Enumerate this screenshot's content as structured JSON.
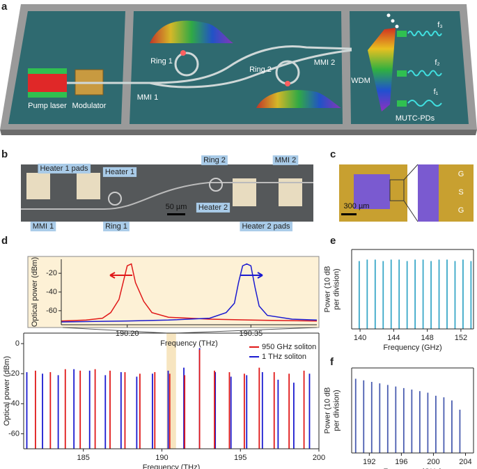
{
  "panels": {
    "a": "a",
    "b": "b",
    "c": "c",
    "d": "d",
    "e": "e",
    "f": "f"
  },
  "schematic": {
    "pump_laser": "Pump laser",
    "modulator": "Modulator",
    "mmi1": "MMI 1",
    "ring1": "Ring 1",
    "ring2": "Ring 2",
    "mmi2": "MMI 2",
    "wdm": "WDM",
    "pds": "MUTC-PDs",
    "f3": "f₃",
    "f2": "f₂",
    "f1": "f₁"
  },
  "micrograph": {
    "heater1_pads": "Heater 1 pads",
    "heater1": "Heater 1",
    "ring2": "Ring 2",
    "mmi2": "MMI 2",
    "mmi1": "MMI 1",
    "ring1": "Ring 1",
    "scale": "50 µm",
    "heater2": "Heater 2",
    "heater2_pads": "Heater 2 pads"
  },
  "chip_photo": {
    "scale": "300 µm",
    "pad_top": "G",
    "pad_mid": "S",
    "pad_bottom": "G"
  },
  "chart_data": [
    {
      "type": "stem",
      "x_label": "Frequency (THz)",
      "y_label": "Optical power (dBm)",
      "xlim": [
        181.2,
        200
      ],
      "ylim": [
        -70,
        7
      ],
      "xticks": [
        185,
        190,
        195,
        200
      ],
      "yticks": [
        -60,
        -40,
        -20,
        0
      ],
      "highlight": [
        190.3,
        190.9
      ],
      "series": [
        {
          "name": "1 THz soliton",
          "color": "#1a1ad0",
          "x": [
            181.4,
            182.4,
            183.4,
            184.4,
            185.4,
            186.4,
            187.4,
            188.4,
            189.4,
            190.4,
            191.4,
            192.4,
            193.4,
            194.4,
            195.4,
            196.4,
            197.4,
            198.4,
            199.4
          ],
          "values": [
            -19,
            -20,
            -21,
            -17,
            -18,
            -21,
            -19,
            -22,
            -20,
            -18,
            -16,
            -3,
            -19,
            -22,
            -21,
            -19,
            -24,
            -26,
            -20
          ]
        },
        {
          "name": "950 GHz soliton",
          "color": "#e01818",
          "x": [
            181.95,
            182.9,
            183.85,
            184.8,
            185.75,
            186.7,
            187.65,
            188.6,
            189.55,
            190.5,
            191.45,
            192.4,
            193.35,
            194.3,
            195.25,
            196.2,
            197.15,
            198.1,
            199.05
          ],
          "values": [
            -18,
            -19,
            -17,
            -18,
            -17,
            -18,
            -19,
            -20,
            -19,
            -20,
            -21,
            -4,
            -18,
            -19,
            -20,
            -16,
            -19,
            -20,
            -18
          ]
        }
      ]
    },
    {
      "type": "line",
      "x_label": "Frequency (THz)",
      "y_label": "Optical power (dBm)",
      "xlim": [
        190.12,
        190.43
      ],
      "ylim": [
        -75,
        -5
      ],
      "xticks": [
        {
          "value": 190.2,
          "label": "190.20"
        },
        190.35
      ],
      "yticks": [
        -60,
        -40,
        -20
      ],
      "series": [
        {
          "color": "#e01818",
          "x": [
            190.12,
            190.15,
            190.17,
            190.18,
            190.19,
            190.195,
            190.2,
            190.205,
            190.21,
            190.22,
            190.23,
            190.25,
            190.3,
            190.35,
            190.43
          ],
          "values": [
            -71,
            -70,
            -68,
            -62,
            -48,
            -30,
            -12,
            -10,
            -30,
            -50,
            -62,
            -67,
            -69,
            -70,
            -71
          ]
        },
        {
          "color": "#1a1ad0",
          "x": [
            190.12,
            190.2,
            190.25,
            190.3,
            190.32,
            190.33,
            190.335,
            190.34,
            190.345,
            190.35,
            190.355,
            190.36,
            190.37,
            190.4,
            190.43
          ],
          "values": [
            -72,
            -71,
            -70,
            -68,
            -62,
            -52,
            -30,
            -12,
            -10,
            -12,
            -35,
            -55,
            -65,
            -69,
            -70
          ]
        }
      ]
    },
    {
      "type": "stem",
      "x_label": "Frequency (GHz)",
      "y_label": [
        "Power (10 dB",
        "per division)"
      ],
      "xlim": [
        139,
        153.5
      ],
      "ylim": [
        0,
        55
      ],
      "xticks": [
        140,
        144,
        148,
        152
      ],
      "series": [
        {
          "color": "#3aa8c8",
          "x": [
            139.9,
            140.85,
            141.8,
            142.75,
            143.7,
            144.65,
            145.6,
            146.55,
            147.5,
            148.45,
            149.4,
            150.35,
            151.3,
            152.25,
            153.2
          ],
          "values": [
            47,
            48,
            48,
            47,
            48,
            48,
            47,
            48,
            48,
            47,
            48,
            48,
            47,
            48,
            47
          ]
        }
      ]
    },
    {
      "type": "stem",
      "x_label": "Frequency (GHz)",
      "y_label": [
        "Power (10 dB",
        "per division)"
      ],
      "xlim": [
        189.8,
        205
      ],
      "ylim": [
        0,
        55
      ],
      "xticks": [
        192,
        196,
        200,
        204
      ],
      "series": [
        {
          "color": "#4a5db0",
          "x": [
            190.3,
            191.3,
            192.3,
            193.3,
            194.3,
            195.3,
            196.3,
            197.3,
            198.3,
            199.3,
            200.3,
            201.3,
            202.3,
            203.3
          ],
          "values": [
            48,
            47,
            46,
            45,
            44,
            43,
            42,
            41,
            40,
            39,
            37,
            36,
            34,
            28
          ]
        }
      ]
    }
  ]
}
